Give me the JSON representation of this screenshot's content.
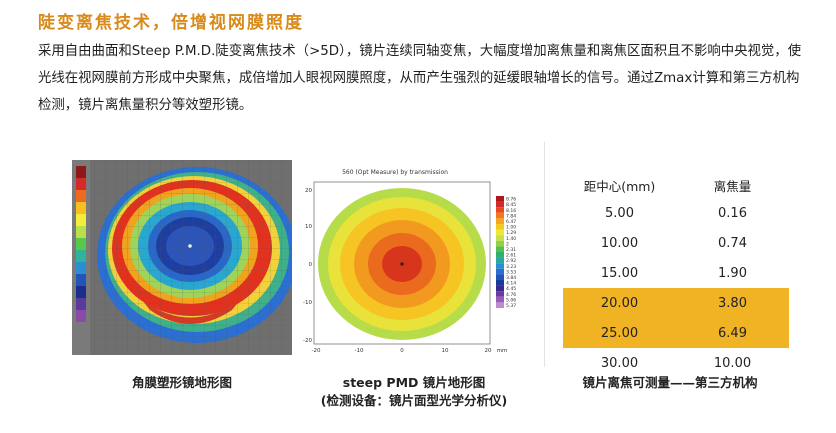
{
  "title": "陡变离焦技术，倍增视网膜照度",
  "paragraph": "采用自由曲面和Steep P.M.D.陡变离焦技术（>5D），镜片连续同轴变焦，大幅度增加离焦量和离焦区面积且不影响中央视觉，使光线在视网膜前方形成中央聚焦，成倍增加人眼视网膜照度，从而产生强烈的延缓眼轴增长的信号。通过Zmax计算和第三方机构检测，镜片离焦量积分等效塑形镜。",
  "figure1": {
    "caption": "角膜塑形镜地形图"
  },
  "figure2": {
    "chart_title": "560 (Opt Measure) by transmission",
    "x_ticks": [
      "-20",
      "-10",
      "0",
      "10",
      "20"
    ],
    "x_unit": "mm",
    "y_ticks": [
      "20",
      "10",
      "0",
      "-10",
      "-20"
    ],
    "legend_values": [
      "8.76",
      "8.45",
      "8.16",
      "7.84",
      "6.47",
      "1.00",
      "1.29",
      "1.40",
      "2",
      "2.31",
      "2.61",
      "2.92",
      "3.23",
      "3.53",
      "3.84",
      "4.14",
      "4.45",
      "4.76",
      "5.06",
      "5.37"
    ],
    "caption_line1": "steep PMD 镜片地形图",
    "caption_line2": "(检测设备：镜片面型光学分析仪)"
  },
  "figure3": {
    "headers": [
      "距中心(mm)",
      "离焦量"
    ],
    "rows": [
      {
        "distance": "5.00",
        "defocus": "0.16",
        "highlight": false
      },
      {
        "distance": "10.00",
        "defocus": "0.74",
        "highlight": false
      },
      {
        "distance": "15.00",
        "defocus": "1.90",
        "highlight": false
      },
      {
        "distance": "20.00",
        "defocus": "3.80",
        "highlight": true
      },
      {
        "distance": "25.00",
        "defocus": "6.49",
        "highlight": true
      },
      {
        "distance": "30.00",
        "defocus": "10.00",
        "highlight": false
      }
    ],
    "caption": "镜片离焦可测量——第三方机构",
    "highlight_color": "#f0b323"
  },
  "colors": {
    "title": "#d98b1a"
  }
}
